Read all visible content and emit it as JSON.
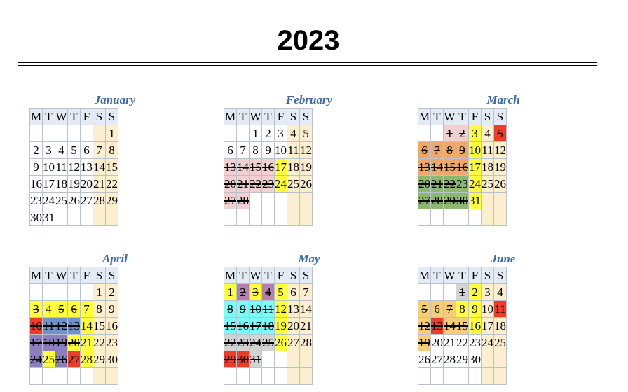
{
  "year": "2023",
  "weekdays": [
    "M",
    "T",
    "W",
    "T",
    "F",
    "S",
    "S"
  ],
  "colors": {
    "weekend": "#fcefcf",
    "yellow": "#ffff3c",
    "pink": "#f2cfd1",
    "orange": "#f0a868",
    "green": "#8db870",
    "red": "#ef3b27",
    "blue": "#6f93c8",
    "purple": "#8d7fbd",
    "cyan": "#7bfcfc",
    "mauve": "#b37fad",
    "gray": "#d3d3d3",
    "lightorange": "#f8cd78"
  },
  "months": [
    {
      "name": "January",
      "offset": 6,
      "days": 31,
      "strike": [],
      "bg": {}
    },
    {
      "name": "February",
      "offset": 2,
      "days": 28,
      "strike": [
        13,
        14,
        15,
        16,
        20,
        21,
        22,
        23,
        27,
        28
      ],
      "bg": {
        "17": "yellow",
        "24": "yellow",
        "13": "pink",
        "14": "pink",
        "15": "pink",
        "16": "pink",
        "20": "pink",
        "21": "pink",
        "22": "pink",
        "23": "pink",
        "27": "pink",
        "28": "pink"
      }
    },
    {
      "name": "March",
      "offset": 2,
      "days": 31,
      "strike": [
        1,
        2,
        5,
        6,
        7,
        8,
        9,
        13,
        14,
        15,
        16,
        20,
        21,
        22,
        27,
        28,
        29,
        30
      ],
      "bg": {
        "1": "pink",
        "2": "pink",
        "3": "yellow",
        "5": "red",
        "6": "orange",
        "7": "orange",
        "8": "orange",
        "9": "orange",
        "10": "yellow",
        "13": "orange",
        "14": "orange",
        "15": "orange",
        "16": "orange",
        "17": "yellow",
        "20": "green",
        "21": "green",
        "22": "green",
        "23": "green",
        "24": "yellow",
        "27": "green",
        "28": "green",
        "29": "green",
        "30": "green",
        "31": "yellow"
      }
    },
    {
      "name": "April",
      "offset": 5,
      "days": 30,
      "strike": [
        3,
        5,
        6,
        10,
        11,
        12,
        13,
        17,
        18,
        19,
        20,
        24,
        26
      ],
      "bg": {
        "3": "yellow",
        "4": "yellow",
        "5": "yellow",
        "6": "yellow",
        "7": "yellow",
        "10": "red",
        "11": "blue",
        "12": "blue",
        "13": "blue",
        "14": "yellow",
        "17": "purple",
        "18": "purple",
        "19": "purple",
        "20": "yellow",
        "21": "yellow",
        "24": "purple",
        "25": "yellow",
        "26": "purple",
        "27": "red",
        "28": "yellow"
      }
    },
    {
      "name": "May",
      "offset": 0,
      "days": 31,
      "strike": [
        2,
        3,
        4,
        8,
        9,
        10,
        11,
        15,
        16,
        17,
        18,
        22,
        23,
        24,
        25,
        29,
        30,
        31
      ],
      "bg": {
        "1": "yellow",
        "2": "mauve",
        "3": "yellow",
        "4": "mauve",
        "5": "yellow",
        "8": "cyan",
        "9": "cyan",
        "10": "cyan",
        "11": "cyan",
        "12": "yellow",
        "15": "cyan",
        "16": "cyan",
        "17": "cyan",
        "18": "cyan",
        "19": "yellow",
        "22": "gray",
        "23": "gray",
        "24": "gray",
        "25": "gray",
        "26": "yellow",
        "29": "red",
        "30": "red",
        "31": "gray"
      }
    },
    {
      "name": "June",
      "offset": 3,
      "days": 30,
      "strike": [
        1,
        5,
        7,
        12,
        13,
        14,
        15,
        19
      ],
      "bg": {
        "1": "gray",
        "2": "yellow",
        "5": "lightorange",
        "6": "lightorange",
        "7": "lightorange",
        "8": "yellow",
        "9": "yellow",
        "11": "red",
        "12": "lightorange",
        "13": "red",
        "14": "lightorange",
        "15": "lightorange",
        "16": "yellow",
        "19": "lightorange"
      }
    }
  ]
}
